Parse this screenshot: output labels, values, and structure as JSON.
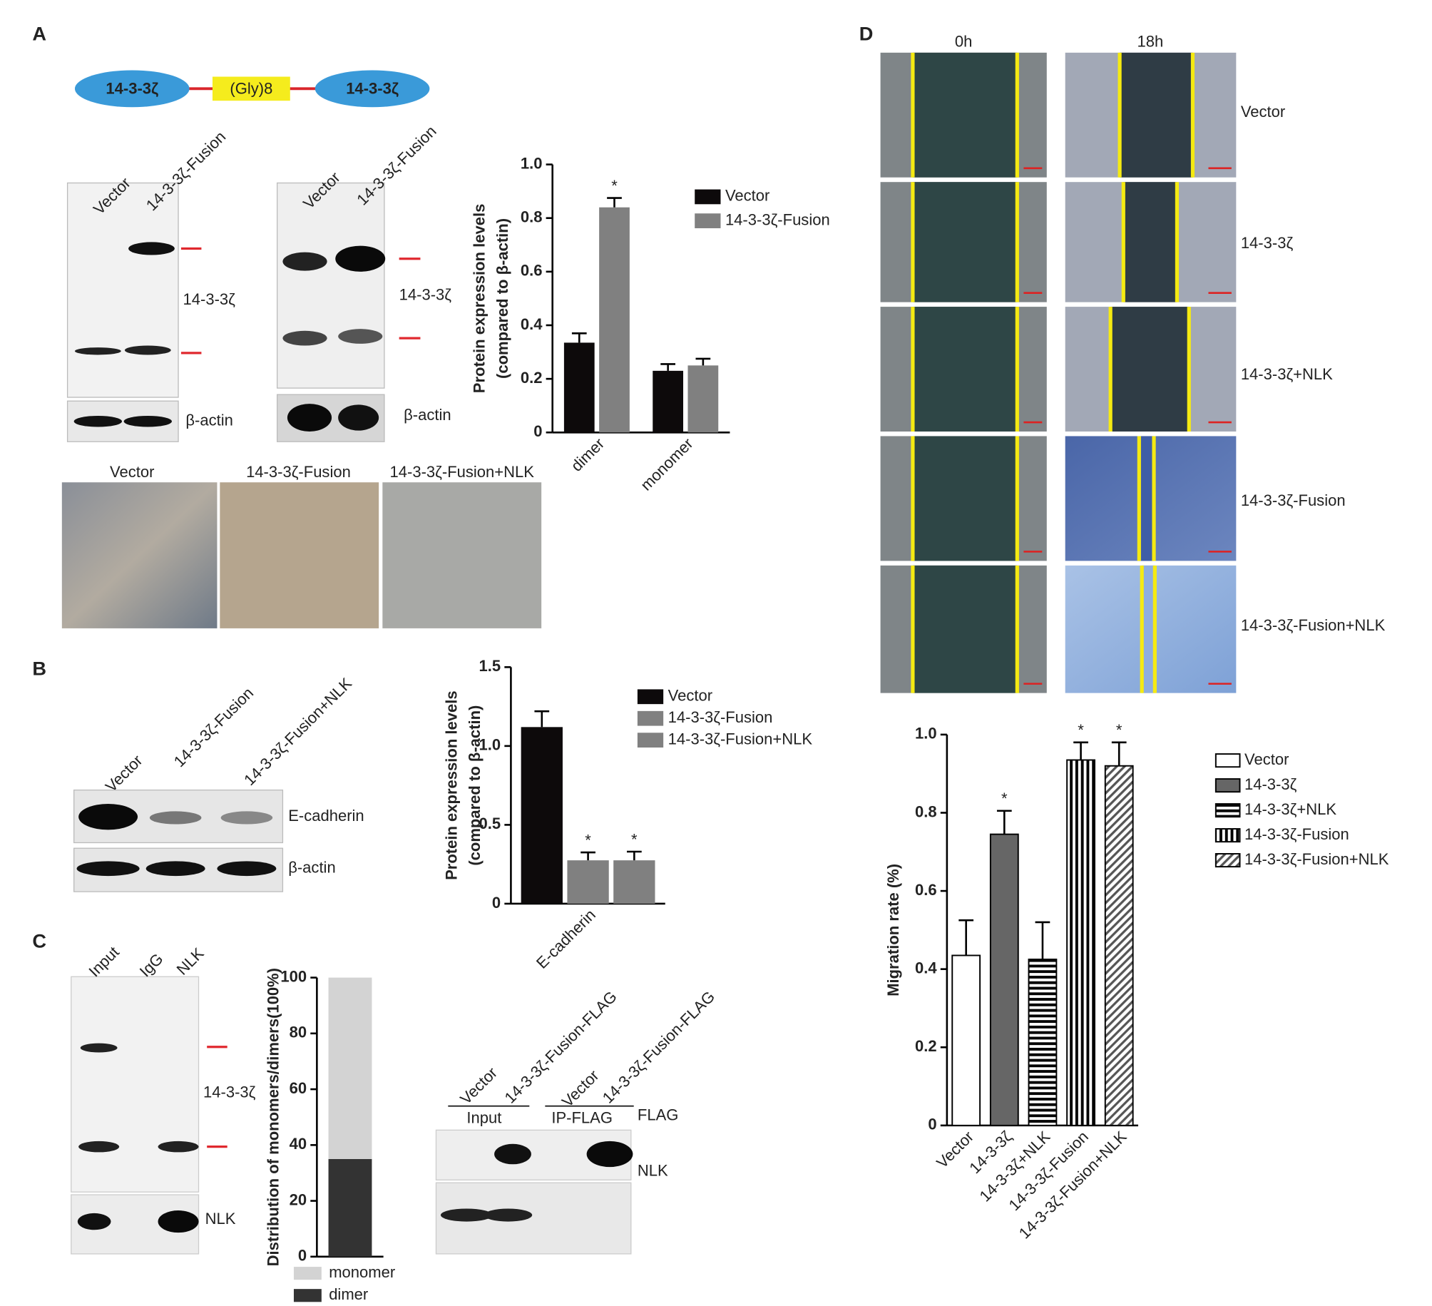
{
  "figure": {
    "panel_labels": [
      "A",
      "B",
      "C",
      "D"
    ],
    "construct": [
      "14-3-3ζ",
      "(Gly)8",
      "14-3-3ζ"
    ],
    "blot_a1": {
      "lanes": [
        "Vector",
        "14-3-3ζ-Fusion"
      ],
      "labels": [
        "14-3-3ζ",
        "β-actin"
      ]
    },
    "blot_a2": {
      "lanes": [
        "Vector",
        "14-3-3ζ-Fusion"
      ],
      "labels": [
        "14-3-3ζ",
        "β-actin"
      ]
    },
    "micrographs": [
      "Vector",
      "14-3-3ζ-Fusion",
      "14-3-3ζ-Fusion+NLK"
    ],
    "blot_b": {
      "lanes": [
        "Vector",
        "14-3-3ζ-Fusion",
        "14-3-3ζ-Fusion+NLK"
      ],
      "labels": [
        "E-cadherin",
        "β-actin"
      ]
    },
    "blot_c1": {
      "lanes": [
        "Input",
        "IgG",
        "NLK"
      ],
      "labels": [
        "14-3-3ζ",
        "NLK"
      ]
    },
    "blot_c2": {
      "lanes": [
        "Vector",
        "14-3-3ζ-Fusion-FLAG",
        "Vector",
        "14-3-3ζ-Fusion-FLAG"
      ],
      "groups": [
        "Input",
        "IP-FLAG"
      ],
      "labels": [
        "FLAG",
        "NLK"
      ]
    },
    "wound": {
      "times": [
        "0h",
        "18h"
      ],
      "rows": [
        "Vector",
        "14-3-3ζ",
        "14-3-3ζ+NLK",
        "14-3-3ζ-Fusion",
        "14-3-3ζ-Fusion+NLK"
      ]
    }
  },
  "chart_data": [
    {
      "type": "bar",
      "ylabel": [
        "Protein expression levels",
        "(compared to β-actin)"
      ],
      "categories": [
        "dimer",
        "monomer"
      ],
      "series": [
        {
          "name": "Vector",
          "color": "#0d0a0b",
          "values": [
            0.335,
            0.23
          ],
          "errors": [
            0.035,
            0.025
          ]
        },
        {
          "name": "14-3-3ζ-Fusion",
          "color": "#808080",
          "values": [
            0.84,
            0.25
          ],
          "errors": [
            0.035,
            0.025
          ],
          "significance": [
            null,
            null
          ]
        }
      ],
      "ylim": [
        0,
        1
      ],
      "yticks": [
        0,
        0.2,
        0.4,
        0.6,
        0.8,
        {
          "value": 1,
          "label": "1.0"
        }
      ],
      "significance": [
        [
          "*",
          1,
          0
        ]
      ]
    },
    {
      "type": "bar",
      "ylabel": [
        "Protein expression levels",
        "(compared to β-actin)"
      ],
      "categories": [
        "E-cadherin"
      ],
      "series": [
        {
          "name": "Vector",
          "color": "#0d0a0b",
          "values": [
            1.12
          ],
          "errors": [
            0.1
          ]
        },
        {
          "name": "14-3-3ζ-Fusion",
          "color": "#808080",
          "values": [
            0.275
          ],
          "errors": [
            0.05
          ]
        },
        {
          "name": "14-3-3ζ-Fusion+NLK",
          "color": "#808080",
          "values": [
            0.275
          ],
          "errors": [
            0.055
          ]
        }
      ],
      "ylim": [
        0,
        1.5
      ],
      "yticks": [
        0,
        0.5,
        {
          "value": 1,
          "label": "1.0"
        },
        1.5
      ],
      "significance": [
        [
          "*",
          1,
          0
        ],
        [
          "*",
          2,
          0
        ]
      ]
    },
    {
      "type": "stacked_bar",
      "ylabel": [
        "Distribution of monomers/dimers(100%)"
      ],
      "categories": [
        null
      ],
      "series": [
        {
          "name": "dimer",
          "color": "#333333",
          "values": [
            35
          ]
        },
        {
          "name": "monomer",
          "color": "#d3d3d3",
          "values": [
            65
          ]
        }
      ],
      "ylim": [
        0,
        100
      ],
      "yticks": [
        0,
        20,
        40,
        60,
        80,
        100
      ]
    },
    {
      "type": "bar",
      "ylabel": [
        "Migration rate (%)"
      ],
      "categories": [
        "Vector",
        "14-3-3ζ",
        "14-3-3ζ+NLK",
        "14-3-3ζ-Fusion",
        "14-3-3ζ-Fusion+NLK"
      ],
      "values": [
        0.435,
        0.745,
        0.425,
        0.935,
        0.92
      ],
      "errors": [
        0.09,
        0.06,
        0.095,
        0.045,
        0.06
      ],
      "patterns": [
        "none",
        "solid",
        "horizontal",
        "vertical",
        "diagonal"
      ],
      "ylim": [
        0,
        1
      ],
      "yticks": [
        0,
        0.2,
        0.4,
        0.6,
        0.8,
        {
          "value": 1,
          "label": "1.0"
        }
      ],
      "significance": [
        [
          "*",
          1
        ],
        [
          "*",
          3
        ],
        [
          "*",
          4
        ]
      ]
    }
  ]
}
